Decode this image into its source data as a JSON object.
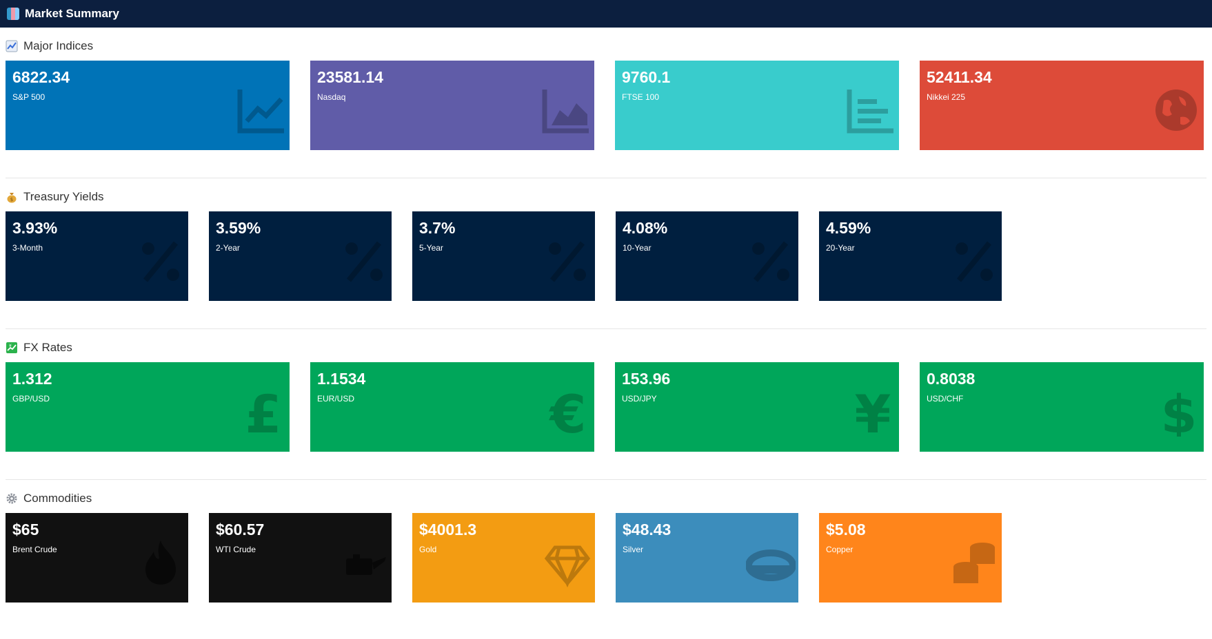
{
  "app": {
    "title": "Market Summary"
  },
  "sections": {
    "indices": {
      "title": "Major Indices",
      "cards": [
        {
          "value": "6822.34",
          "label": "S&P 500",
          "icon": "line-chart-icon",
          "color": "#0073b7"
        },
        {
          "value": "23581.14",
          "label": "Nasdaq",
          "icon": "area-chart-icon",
          "color": "#605ca8"
        },
        {
          "value": "9760.1",
          "label": "FTSE 100",
          "icon": "bar-chart-icon",
          "color": "#39cccc"
        },
        {
          "value": "52411.34",
          "label": "Nikkei 225",
          "icon": "globe-icon",
          "color": "#dd4b39"
        }
      ]
    },
    "yields": {
      "title": "Treasury Yields",
      "cards": [
        {
          "value": "3.93%",
          "label": "3-Month",
          "icon": "percent-icon",
          "color": "#001f3f"
        },
        {
          "value": "3.59%",
          "label": "2-Year",
          "icon": "percent-icon",
          "color": "#001f3f"
        },
        {
          "value": "3.7%",
          "label": "5-Year",
          "icon": "percent-icon",
          "color": "#001f3f"
        },
        {
          "value": "4.08%",
          "label": "10-Year",
          "icon": "percent-icon",
          "color": "#001f3f"
        },
        {
          "value": "4.59%",
          "label": "20-Year",
          "icon": "percent-icon",
          "color": "#001f3f"
        }
      ]
    },
    "fx": {
      "title": "FX Rates",
      "cards": [
        {
          "value": "1.312",
          "label": "GBP/USD",
          "icon": "pound-icon",
          "color": "#00a65a"
        },
        {
          "value": "1.1534",
          "label": "EUR/USD",
          "icon": "euro-icon",
          "color": "#00a65a"
        },
        {
          "value": "153.96",
          "label": "USD/JPY",
          "icon": "yen-icon",
          "color": "#00a65a"
        },
        {
          "value": "0.8038",
          "label": "USD/CHF",
          "icon": "dollar-icon",
          "color": "#00a65a"
        }
      ]
    },
    "commodities": {
      "title": "Commodities",
      "cards": [
        {
          "value": "$65",
          "label": "Brent Crude",
          "icon": "fire-icon",
          "color": "#111111"
        },
        {
          "value": "$60.57",
          "label": "WTI Crude",
          "icon": "oil-can-icon",
          "color": "#111111"
        },
        {
          "value": "$4001.3",
          "label": "Gold",
          "icon": "gem-icon",
          "color": "#f39c12"
        },
        {
          "value": "$48.43",
          "label": "Silver",
          "icon": "ring-icon",
          "color": "#3c8dbc"
        },
        {
          "value": "$5.08",
          "label": "Copper",
          "icon": "coins-icon",
          "color": "#ff851b"
        }
      ]
    }
  }
}
